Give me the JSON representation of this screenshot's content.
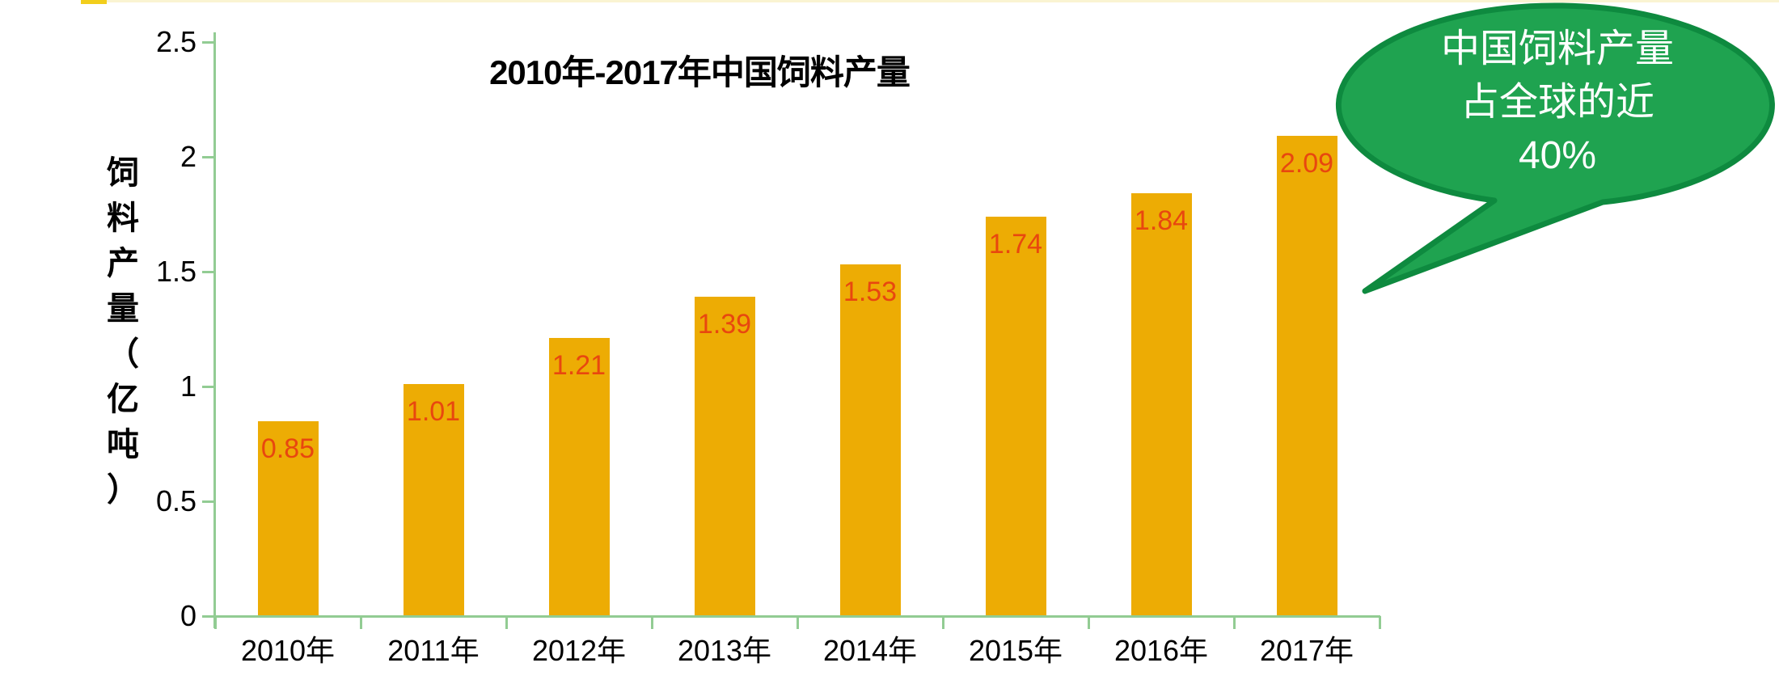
{
  "page": {
    "background": "#ffffff",
    "top_edge_line_color": "#FAF4D2",
    "top_edge_accent_color": "#F2CE1B"
  },
  "chart_data": {
    "type": "bar",
    "title": "2010年-2017年中国饲料产量",
    "ylabel": "饲料产量（亿吨）",
    "ylabel_chars": [
      "饲",
      "料",
      "产",
      "量",
      "（",
      "亿",
      "吨",
      "）"
    ],
    "xlabel": "",
    "categories": [
      "2010年",
      "2011年",
      "2012年",
      "2013年",
      "2014年",
      "2015年",
      "2016年",
      "2017年"
    ],
    "values": [
      0.85,
      1.01,
      1.21,
      1.39,
      1.53,
      1.74,
      1.84,
      2.09
    ],
    "value_labels": [
      "0.85",
      "1.01",
      "1.21",
      "1.39",
      "1.53",
      "1.74",
      "1.84",
      "2.09"
    ],
    "y_ticks": [
      0,
      0.5,
      1,
      1.5,
      2,
      2.5
    ],
    "y_tick_labels": [
      "0",
      "0.5",
      "1",
      "1.5",
      "2",
      "2.5"
    ],
    "ylim": [
      0,
      2.5
    ],
    "grid": false,
    "legend": null,
    "bar_color": "#EDAC04",
    "value_label_color": "#E8470F",
    "axis_color": "#92CC93",
    "text_color": "#000000"
  },
  "annotation": {
    "lines": [
      "中国饲料产量",
      "占全球的近",
      "40%"
    ],
    "fill": "#1FA350",
    "border": "#0E8A3F",
    "text_color": "#ffffff"
  }
}
